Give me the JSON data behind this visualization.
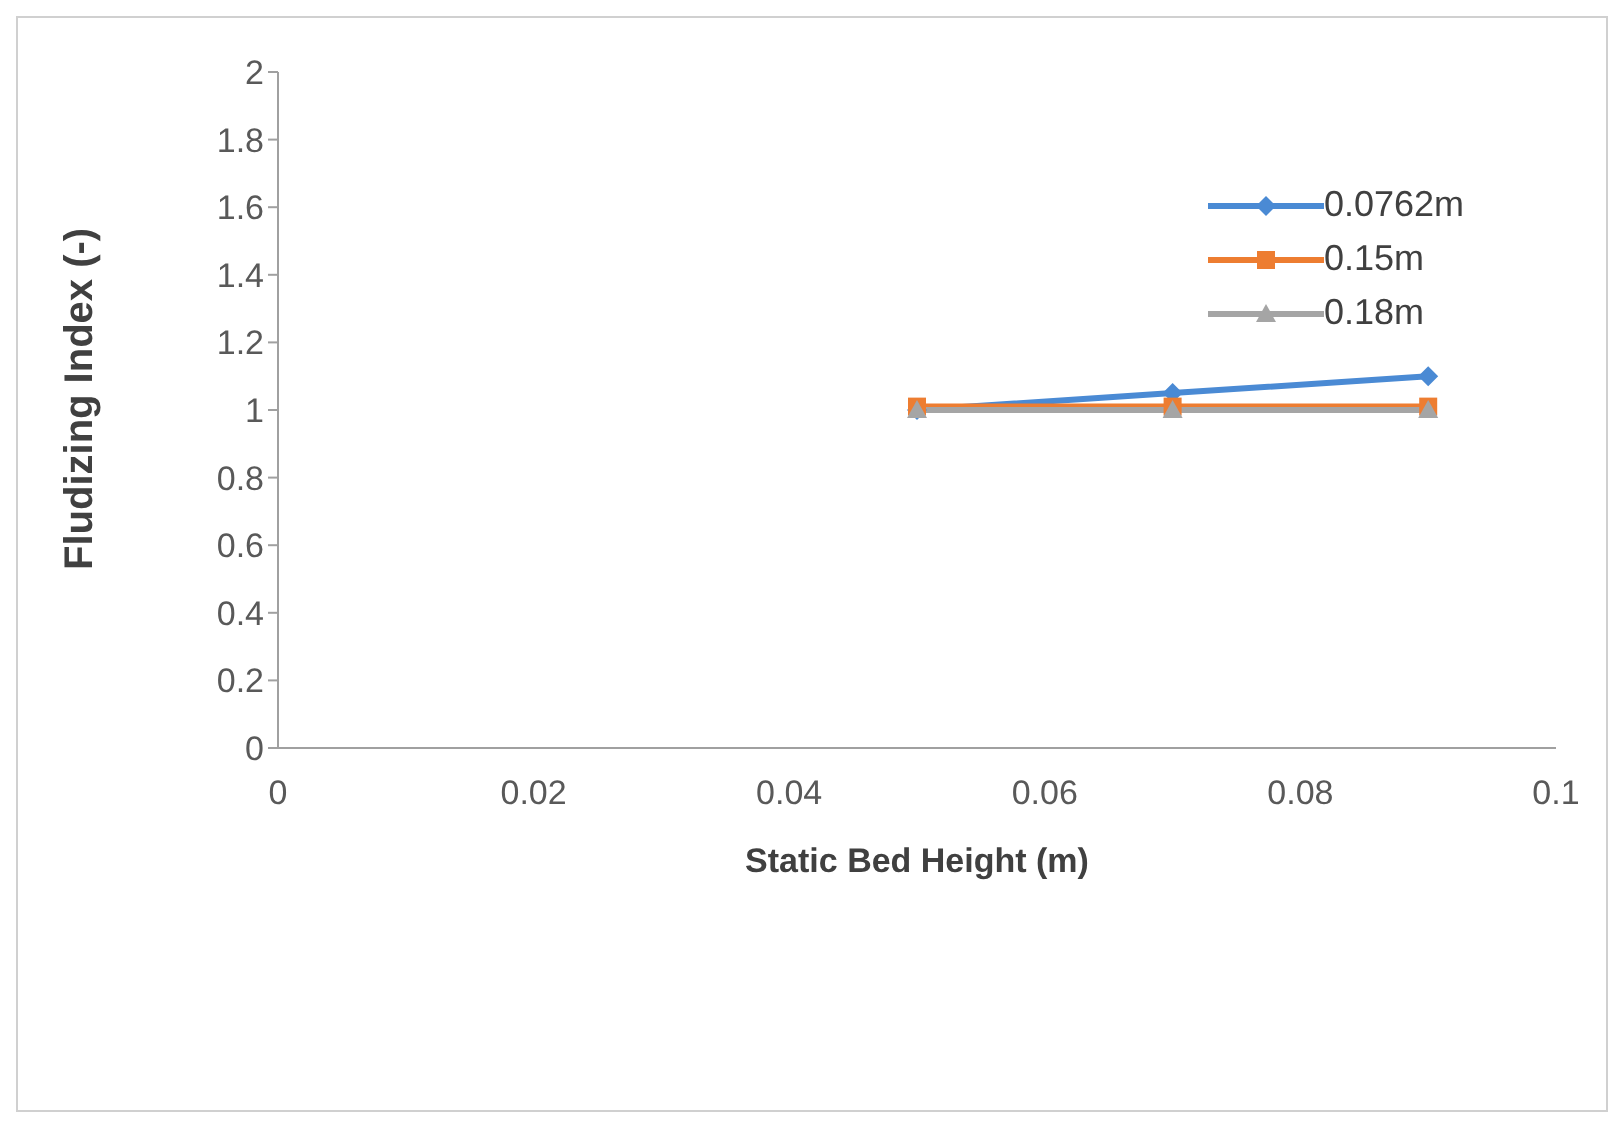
{
  "chart_data": {
    "type": "line",
    "xlabel": "Static Bed Height (m)",
    "ylabel": "Fludizing Index (-)",
    "x": [
      0.05,
      0.07,
      0.09
    ],
    "series": [
      {
        "name": "0.0762m",
        "color": "#4a8ad4",
        "values": [
          1.0,
          1.05,
          1.1
        ],
        "marker": "diamond"
      },
      {
        "name": "0.15m",
        "color": "#ed7d31",
        "values": [
          1.01,
          1.01,
          1.01
        ],
        "marker": "square"
      },
      {
        "name": "0.18m",
        "color": "#a5a5a5",
        "values": [
          1.0,
          1.0,
          1.0
        ],
        "marker": "triangle"
      }
    ],
    "xlim": [
      0,
      0.1
    ],
    "xticks": [
      0,
      0.02,
      0.04,
      0.06,
      0.08,
      0.1
    ],
    "ylim": [
      0,
      2
    ],
    "yticks": [
      0,
      0.2,
      0.4,
      0.6,
      0.8,
      1,
      1.2,
      1.4,
      1.6,
      1.8,
      2
    ],
    "grid": false,
    "legend": "top right",
    "line_style": "solid"
  }
}
